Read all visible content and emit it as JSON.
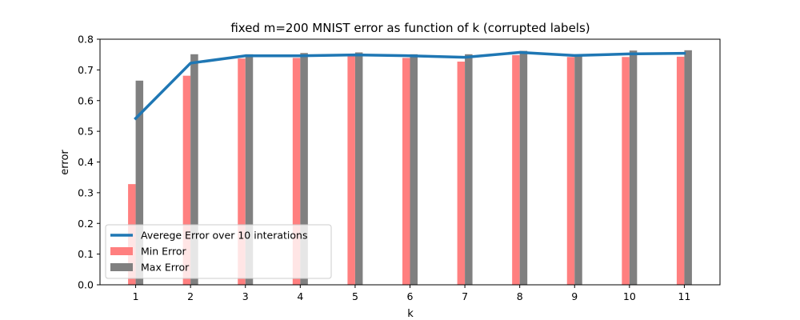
{
  "chart_data": {
    "type": "bar",
    "title": "fixed m=200 MNIST error as function of k (corrupted labels)",
    "xlabel": "k",
    "ylabel": "error",
    "x": [
      1,
      2,
      3,
      4,
      5,
      6,
      7,
      8,
      9,
      10,
      11
    ],
    "xlim": [
      0.35,
      11.65
    ],
    "ylim": [
      0,
      0.8
    ],
    "yticks": [
      "0.0",
      "0.1",
      "0.2",
      "0.3",
      "0.4",
      "0.5",
      "0.6",
      "0.7",
      "0.8"
    ],
    "grid": false,
    "legend_position": "lower-left",
    "series": [
      {
        "name": "Averege Error over 10 interations",
        "kind": "line",
        "color": "#1f77b4",
        "values": [
          0.542,
          0.722,
          0.746,
          0.746,
          0.749,
          0.746,
          0.741,
          0.757,
          0.747,
          0.752,
          0.754
        ]
      },
      {
        "name": "Min Error",
        "kind": "bar",
        "color": "#ff7f7f",
        "values": [
          0.328,
          0.681,
          0.737,
          0.739,
          0.745,
          0.739,
          0.727,
          0.748,
          0.742,
          0.742,
          0.743
        ]
      },
      {
        "name": "Max Error",
        "kind": "bar",
        "color": "#808080",
        "values": [
          0.665,
          0.751,
          0.751,
          0.755,
          0.757,
          0.751,
          0.751,
          0.762,
          0.751,
          0.763,
          0.764
        ]
      }
    ]
  }
}
